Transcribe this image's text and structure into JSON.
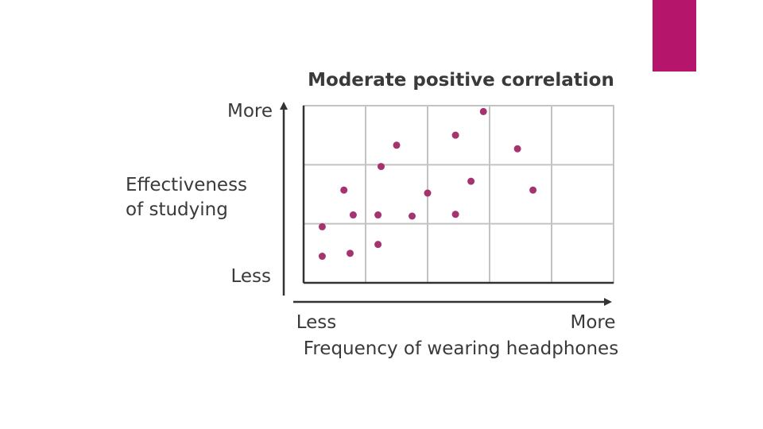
{
  "slide": {
    "accent_color": "#b5156b"
  },
  "chart_data": {
    "type": "scatter",
    "title": "Moderate positive correlation",
    "xlabel": "Frequency of wearing headphones",
    "ylabel_line1": "Effectiveness",
    "ylabel_line2": "of studying",
    "x_low_label": "Less",
    "x_high_label": "More",
    "y_low_label": "Less",
    "y_high_label": "More",
    "xlim": [
      0,
      5
    ],
    "ylim": [
      0,
      3
    ],
    "grid": true,
    "x_gridlines": [
      1,
      2,
      3,
      4
    ],
    "y_gridlines": [
      1,
      2
    ],
    "point_color": "#a4336f",
    "series": [
      {
        "name": "observations",
        "points": [
          {
            "x": 0.3,
            "y": 0.45
          },
          {
            "x": 0.75,
            "y": 0.5
          },
          {
            "x": 1.2,
            "y": 0.65
          },
          {
            "x": 0.3,
            "y": 0.95
          },
          {
            "x": 0.8,
            "y": 1.15
          },
          {
            "x": 1.2,
            "y": 1.15
          },
          {
            "x": 1.75,
            "y": 1.13
          },
          {
            "x": 2.45,
            "y": 1.16
          },
          {
            "x": 0.65,
            "y": 1.57
          },
          {
            "x": 2.0,
            "y": 1.52
          },
          {
            "x": 2.7,
            "y": 1.72
          },
          {
            "x": 1.25,
            "y": 1.97
          },
          {
            "x": 3.7,
            "y": 1.57
          },
          {
            "x": 1.5,
            "y": 2.33
          },
          {
            "x": 2.45,
            "y": 2.5
          },
          {
            "x": 3.45,
            "y": 2.27
          },
          {
            "x": 2.9,
            "y": 2.9
          }
        ]
      }
    ]
  }
}
